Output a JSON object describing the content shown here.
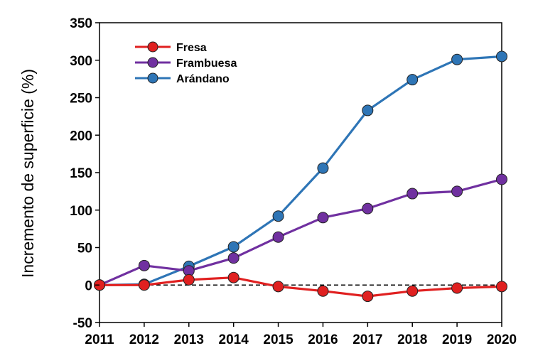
{
  "chart_data": {
    "type": "line",
    "title": "",
    "xlabel": "",
    "ylabel": "Incremento de superficie (%)",
    "x": [
      2011,
      2012,
      2013,
      2014,
      2015,
      2016,
      2017,
      2018,
      2019,
      2020
    ],
    "xlim": [
      2011,
      2020
    ],
    "ylim": [
      -50,
      350
    ],
    "yticks": [
      -50,
      0,
      50,
      100,
      150,
      200,
      250,
      300,
      350
    ],
    "grid": false,
    "legend_position": "top-left",
    "reference_line": {
      "y": 0,
      "style": "dashed",
      "color": "#000000"
    },
    "series": [
      {
        "name": "Fresa",
        "color": "#e02020",
        "values": [
          0,
          0,
          7,
          10,
          -2,
          -8,
          -15,
          -8,
          -4,
          -2
        ]
      },
      {
        "name": "Frambuesa",
        "color": "#7030a0",
        "values": [
          0,
          26,
          19,
          36,
          64,
          90,
          102,
          122,
          125,
          141
        ]
      },
      {
        "name": "Arándano",
        "color": "#2e75b6",
        "values": [
          0,
          1,
          25,
          51,
          92,
          156,
          233,
          274,
          301,
          305
        ]
      }
    ]
  }
}
